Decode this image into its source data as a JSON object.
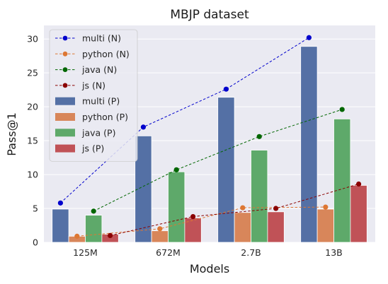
{
  "chart_data": {
    "type": "bar",
    "title": "MBJP dataset",
    "xlabel": "Models",
    "ylabel": "Pass@1",
    "categories": [
      "125M",
      "672M",
      "2.7B",
      "13B"
    ],
    "ylim": [
      0,
      32
    ],
    "yticks": [
      0,
      5,
      10,
      15,
      20,
      25,
      30
    ],
    "grid": true,
    "legend_position": "top-left",
    "line_series": [
      {
        "name": "multi (N)",
        "color": "#0000cc",
        "values": [
          5.8,
          17.0,
          22.6,
          30.2
        ]
      },
      {
        "name": "python (N)",
        "color": "#dd7733",
        "values": [
          0.9,
          2.0,
          5.1,
          5.2
        ]
      },
      {
        "name": "java (N)",
        "color": "#006600",
        "values": [
          4.6,
          10.7,
          15.6,
          19.6
        ]
      },
      {
        "name": "js (N)",
        "color": "#8b0000",
        "values": [
          1.0,
          3.8,
          5.0,
          8.6
        ]
      }
    ],
    "bar_series": [
      {
        "name": "multi (P)",
        "color": "#5470a5",
        "values": [
          4.9,
          15.7,
          21.4,
          28.9
        ]
      },
      {
        "name": "python (P)",
        "color": "#d8865a",
        "values": [
          0.9,
          1.7,
          4.4,
          4.9
        ]
      },
      {
        "name": "java (P)",
        "color": "#5ea96a",
        "values": [
          4.0,
          10.4,
          13.6,
          18.2
        ]
      },
      {
        "name": "js (P)",
        "color": "#c05257",
        "values": [
          1.2,
          3.6,
          4.5,
          8.4
        ]
      }
    ]
  }
}
